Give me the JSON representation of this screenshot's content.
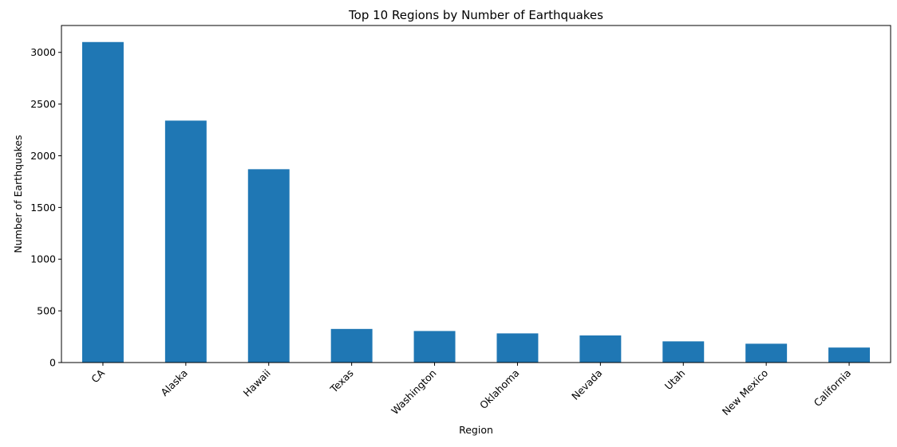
{
  "chart_data": {
    "type": "bar",
    "title": "Top 10 Regions by Number of Earthquakes",
    "xlabel": "Region",
    "ylabel": "Number of Earthquakes",
    "categories": [
      "CA",
      "Alaska",
      "Hawaii",
      "Texas",
      "Washington",
      "Oklahoma",
      "Nevada",
      "Utah",
      "New Mexico",
      "California"
    ],
    "values": [
      3100,
      2340,
      1870,
      325,
      305,
      282,
      262,
      205,
      182,
      145
    ],
    "ylim": [
      0,
      3260
    ],
    "yticks": [
      0,
      500,
      1000,
      1500,
      2000,
      2500,
      3000
    ],
    "ytick_labels": [
      "0",
      "500",
      "1000",
      "1500",
      "2000",
      "2500",
      "3000"
    ],
    "grid": false,
    "bar_color": "#1f77b4"
  }
}
